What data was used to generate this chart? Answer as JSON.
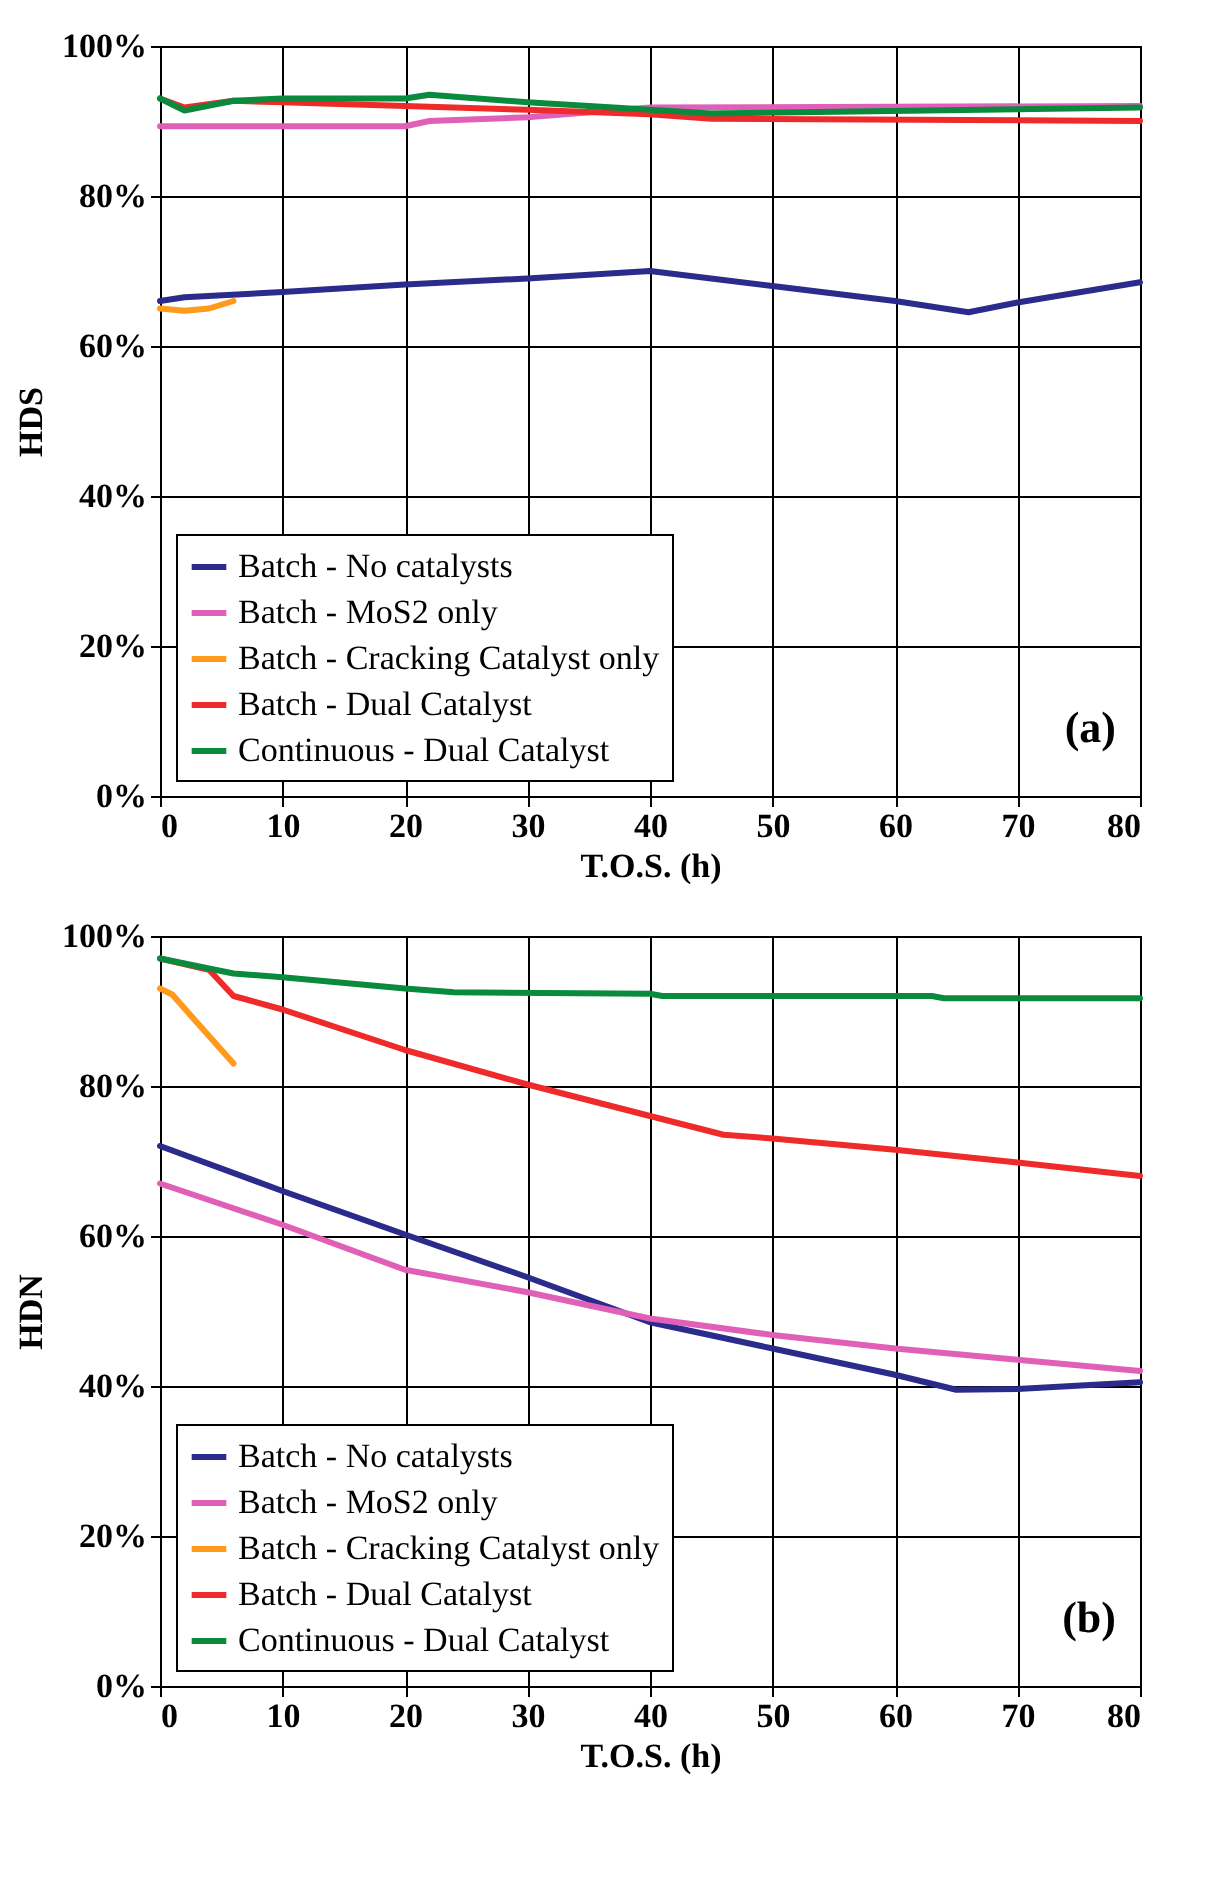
{
  "chart_data": [
    {
      "type": "line",
      "xlabel": "T.O.S. (h)",
      "ylabel": "HDS",
      "annotations": [
        "(a)"
      ],
      "xlim": [
        0,
        80
      ],
      "xticks": [
        0,
        10,
        20,
        30,
        40,
        50,
        60,
        70,
        80
      ],
      "ylim": [
        0,
        100
      ],
      "yticks": [
        {
          "value": 0,
          "label": "0%"
        },
        {
          "value": 20,
          "label": "20%"
        },
        {
          "value": 40,
          "label": "40%"
        },
        {
          "value": 60,
          "label": "60%"
        },
        {
          "value": 80,
          "label": "80%"
        },
        {
          "value": 100,
          "label": "100%"
        }
      ],
      "grid": true,
      "legend": "bottom left",
      "marker": "none",
      "line_style": "solid",
      "series": [
        {
          "name": "Batch - No catalysts",
          "color": "#2b2b8c",
          "x": [
            0,
            2,
            10,
            20,
            30,
            40,
            50,
            60,
            66,
            70,
            80
          ],
          "values": [
            66,
            66.5,
            67.2,
            68.2,
            69,
            70,
            68,
            66,
            64.5,
            65.8,
            68.5
          ]
        },
        {
          "name": "Batch - MoS2 only",
          "color": "#e060b8",
          "x": [
            0,
            20,
            22,
            30,
            40,
            80
          ],
          "values": [
            89.3,
            89.3,
            90,
            90.5,
            91.8,
            92
          ]
        },
        {
          "name": "Batch - Cracking Catalyst only",
          "color": "#ff9a1a",
          "x": [
            0,
            2,
            4,
            6
          ],
          "values": [
            65,
            64.7,
            65,
            66
          ]
        },
        {
          "name": "Batch - Dual Catalyst",
          "color": "#ee2a2a",
          "x": [
            0,
            2,
            6,
            10,
            20,
            30,
            40,
            45,
            80
          ],
          "values": [
            93,
            91.8,
            92.7,
            92.5,
            92,
            91.5,
            90.9,
            90.3,
            90
          ]
        },
        {
          "name": "Continuous - Dual Catalyst",
          "color": "#0a8a3c",
          "x": [
            0,
            2,
            6,
            10,
            20,
            22,
            30,
            40,
            45,
            80
          ],
          "values": [
            93,
            91.4,
            92.7,
            93,
            93,
            93.5,
            92.5,
            91.5,
            91,
            91.8
          ]
        }
      ]
    },
    {
      "type": "line",
      "xlabel": "T.O.S. (h)",
      "ylabel": "HDN",
      "annotations": [
        "(b)"
      ],
      "xlim": [
        0,
        80
      ],
      "xticks": [
        0,
        10,
        20,
        30,
        40,
        50,
        60,
        70,
        80
      ],
      "ylim": [
        0,
        100
      ],
      "yticks": [
        {
          "value": 0,
          "label": "0%"
        },
        {
          "value": 20,
          "label": "20%"
        },
        {
          "value": 40,
          "label": "40%"
        },
        {
          "value": 60,
          "label": "60%"
        },
        {
          "value": 80,
          "label": "80%"
        },
        {
          "value": 100,
          "label": "100%"
        }
      ],
      "grid": true,
      "legend": "bottom left",
      "marker": "none",
      "line_style": "solid",
      "series": [
        {
          "name": "Batch - No catalysts",
          "color": "#2b2b8c",
          "x": [
            0,
            10,
            20,
            30,
            40,
            50,
            60,
            65,
            70,
            80
          ],
          "values": [
            72,
            66,
            60.2,
            54.5,
            48.5,
            45,
            41.5,
            39.5,
            39.6,
            40.5
          ]
        },
        {
          "name": "Batch - MoS2 only",
          "color": "#e060b8",
          "x": [
            0,
            10,
            20,
            30,
            40,
            50,
            60,
            70,
            80
          ],
          "values": [
            67,
            61.5,
            55.5,
            52.5,
            49,
            46.8,
            45,
            43.5,
            42
          ]
        },
        {
          "name": "Batch - Cracking Catalyst only",
          "color": "#ff9a1a",
          "x": [
            0,
            1,
            3,
            6
          ],
          "values": [
            93,
            92.2,
            88.5,
            83
          ]
        },
        {
          "name": "Batch - Dual Catalyst",
          "color": "#ee2a2a",
          "x": [
            0,
            4,
            6,
            10,
            20,
            30,
            40,
            46,
            50,
            60,
            70,
            80
          ],
          "values": [
            97,
            95.5,
            92,
            90.2,
            84.8,
            80.2,
            76,
            73.5,
            73,
            71.5,
            69.8,
            68
          ]
        },
        {
          "name": "Continuous - Dual Catalyst",
          "color": "#0a8a3c",
          "x": [
            0,
            6,
            10,
            20,
            24,
            40,
            41,
            63,
            64,
            80
          ],
          "values": [
            97,
            95,
            94.5,
            93,
            92.5,
            92.3,
            92,
            92,
            91.7,
            91.7
          ]
        }
      ]
    }
  ]
}
